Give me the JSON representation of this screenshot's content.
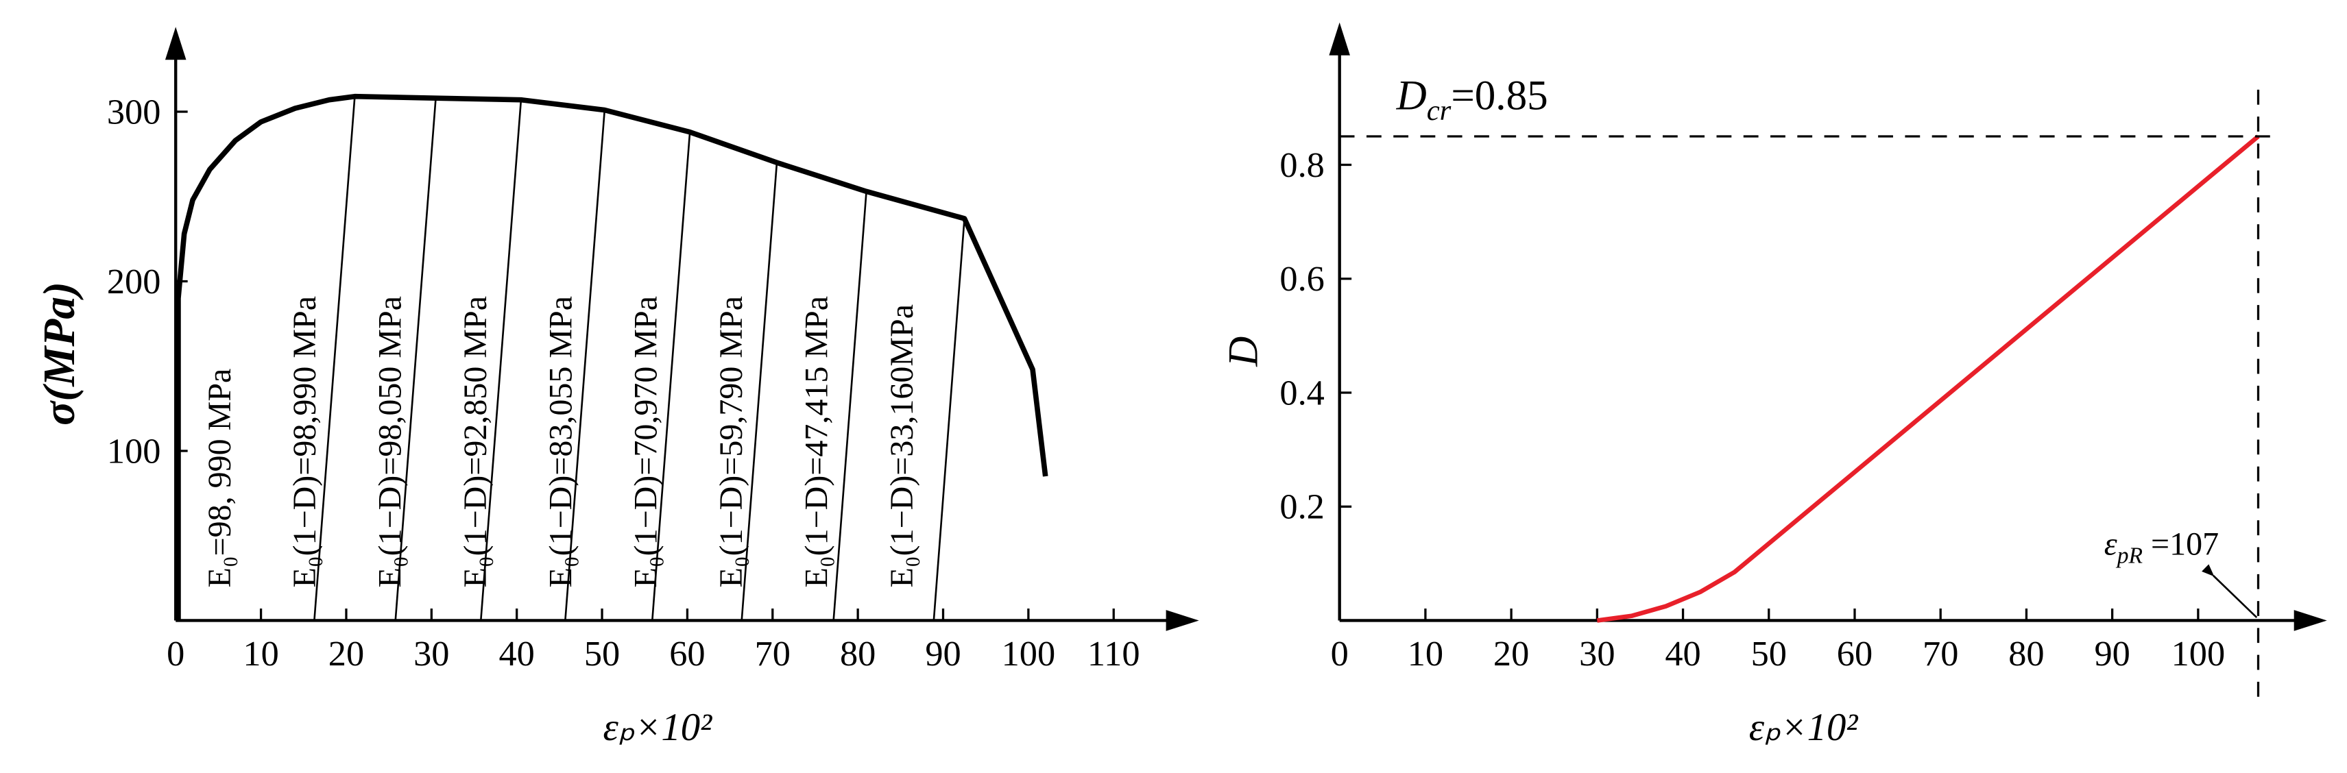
{
  "chart_data": [
    {
      "type": "line",
      "y_label": "σ(MPa)",
      "x_label": "εₚ×10²",
      "x": [
        0.3,
        0.3,
        1,
        2,
        4,
        7,
        10,
        14,
        18,
        21,
        30.5,
        40.5,
        50.3,
        60.3,
        70.5,
        81,
        92.5,
        100.5,
        102
      ],
      "series": [
        {
          "color": "#000000",
          "values": [
            0,
            190,
            228,
            248,
            266,
            283,
            294,
            302,
            307,
            309,
            308,
            307,
            301,
            288,
            270,
            253,
            237,
            148,
            85
          ]
        }
      ],
      "xlim": [
        0,
        120
      ],
      "ylim": [
        0,
        350
      ],
      "xticks": [
        0,
        10,
        20,
        30,
        40,
        50,
        60,
        70,
        80,
        90,
        100,
        110
      ],
      "yticks": [
        100,
        200,
        300
      ],
      "annotations": [
        "E₀=98, 990 MPa",
        "E₀(1−D)=98,990 MPa",
        "E₀(1−D)=98,050 MPa",
        "E₀(1−D)=92,850 MPa",
        "E₀(1−D)=83,055 MPa",
        "E₀(1−D)=70,970 MPa",
        "E₀(1−D)=59,790 MPa",
        "E₀(1−D)=47,415 MPa",
        "E₀(1−D)=33,160MPa"
      ]
    },
    {
      "type": "line",
      "y_label": "D",
      "x_label": "εₚ×10²",
      "x": [
        30,
        34,
        38,
        42,
        46,
        107
      ],
      "series": [
        {
          "color": "#e8202a",
          "values": [
            0,
            0.008,
            0.025,
            0.05,
            0.085,
            0.85
          ]
        }
      ],
      "xlim": [
        0,
        115
      ],
      "ylim": [
        0,
        1.05
      ],
      "xticks": [
        0,
        10,
        20,
        30,
        40,
        50,
        60,
        70,
        80,
        90,
        100
      ],
      "yticks": [
        0.2,
        0.4,
        0.6,
        0.8
      ],
      "hline": 0.85,
      "vline": 107,
      "dcr_label": {
        "base": "D",
        "sub": "cr",
        "rest": "=0.85"
      },
      "epr_label": {
        "base": "ε",
        "sub": "pR",
        "rest": " =107"
      }
    }
  ]
}
